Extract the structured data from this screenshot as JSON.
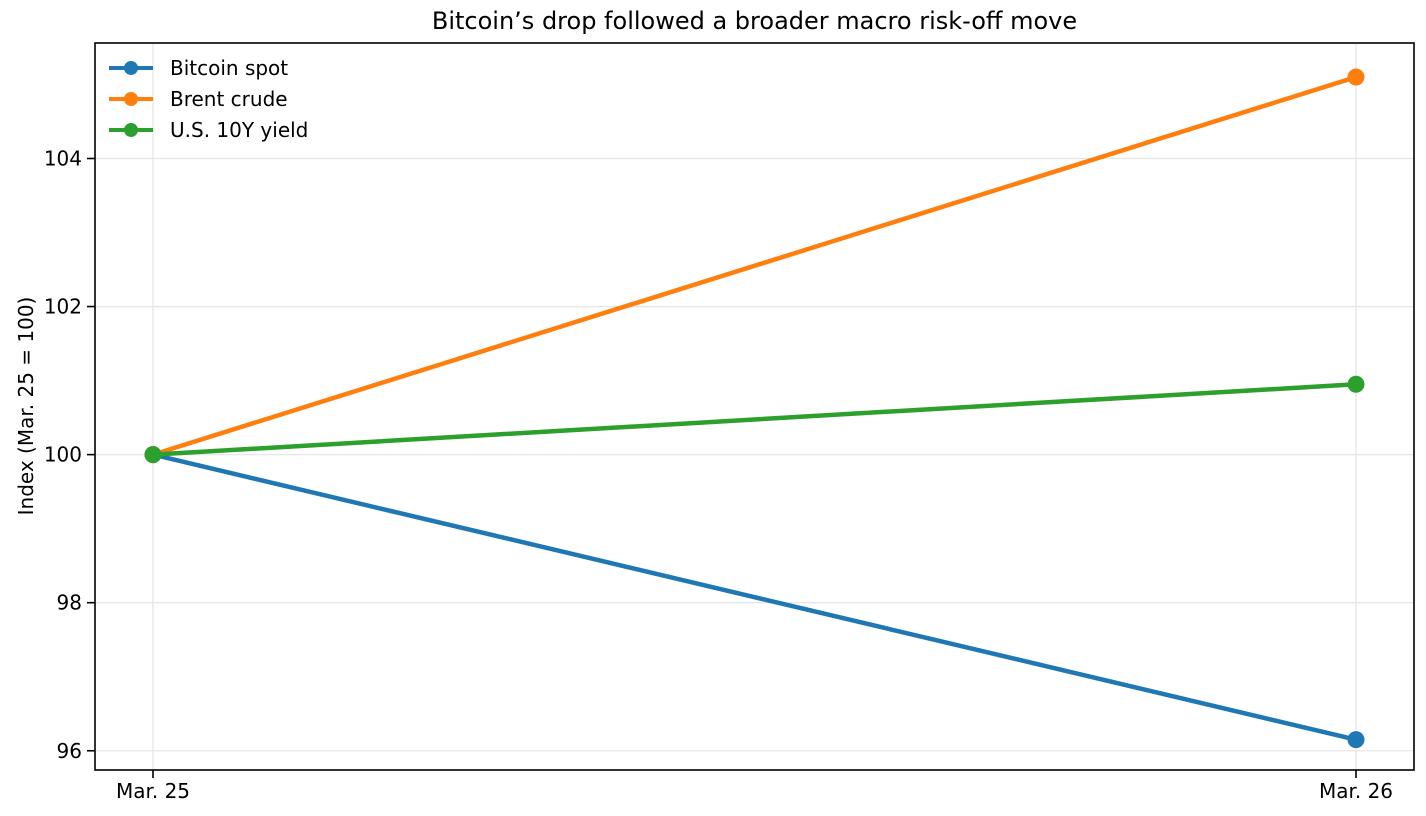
{
  "chart_data": {
    "type": "line",
    "title": "Bitcoin’s drop followed a broader macro risk-off move",
    "xlabel": "",
    "ylabel": "Index (Mar. 25 = 100)",
    "categories": [
      "Mar. 25",
      "Mar. 26"
    ],
    "yticks": [
      96,
      98,
      100,
      102,
      104
    ],
    "ylim": [
      95.74,
      105.56
    ],
    "grid": true,
    "grid_color": "#e6e6e6",
    "axis_color": "#000000",
    "background_color": "#ffffff",
    "legend": {
      "position": "upper-left",
      "frame": false
    },
    "series": [
      {
        "name": "Bitcoin spot",
        "color": "#1f77b4",
        "values": [
          100,
          96.15
        ]
      },
      {
        "name": "Brent crude",
        "color": "#ff7f0e",
        "values": [
          100,
          105.1
        ]
      },
      {
        "name": "U.S. 10Y yield",
        "color": "#2ca02c",
        "values": [
          100,
          100.95
        ]
      }
    ]
  }
}
